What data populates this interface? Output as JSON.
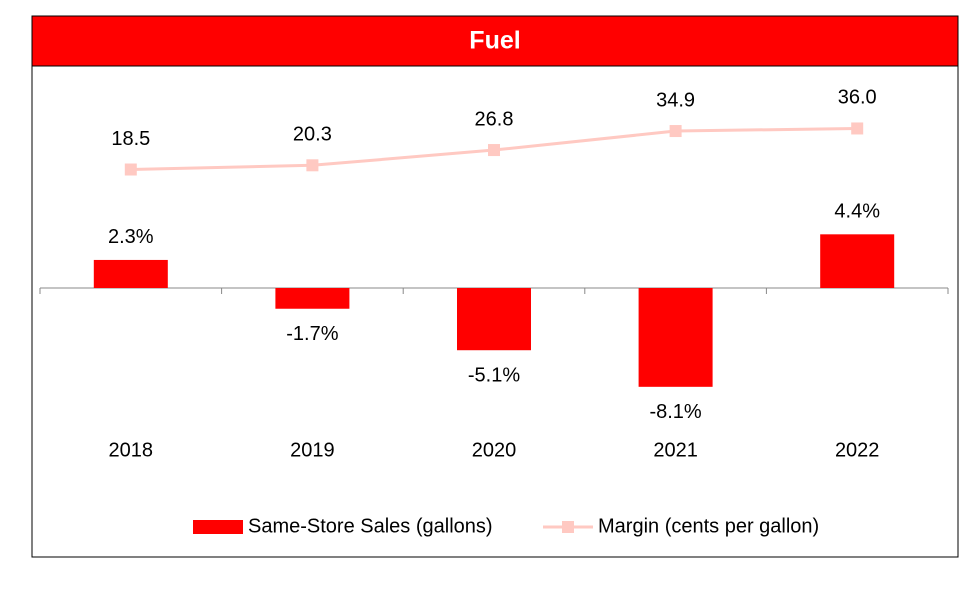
{
  "chart_data": {
    "type": "combo",
    "title": "Fuel",
    "categories": [
      "2018",
      "2019",
      "2020",
      "2021",
      "2022"
    ],
    "series": [
      {
        "name": "Same-Store Sales (gallons)",
        "type": "bar",
        "color": "#ff0000",
        "values": [
          2.3,
          -1.7,
          -5.1,
          -8.1,
          4.4
        ],
        "value_labels": [
          "2.3%",
          "-1.7%",
          "-5.1%",
          "-8.1%",
          "4.4%"
        ]
      },
      {
        "name": "Margin (cents per gallon)",
        "type": "line",
        "axis": "y2",
        "color": "#ffc9c2",
        "values": [
          18.5,
          20.3,
          26.8,
          34.9,
          36.0
        ],
        "value_labels": [
          "18.5",
          "20.3",
          "26.8",
          "34.9",
          "36.0"
        ]
      }
    ],
    "ylim": [
      -15,
      15
    ],
    "y2lim": [
      -110,
      46
    ],
    "legend": "bottom"
  }
}
